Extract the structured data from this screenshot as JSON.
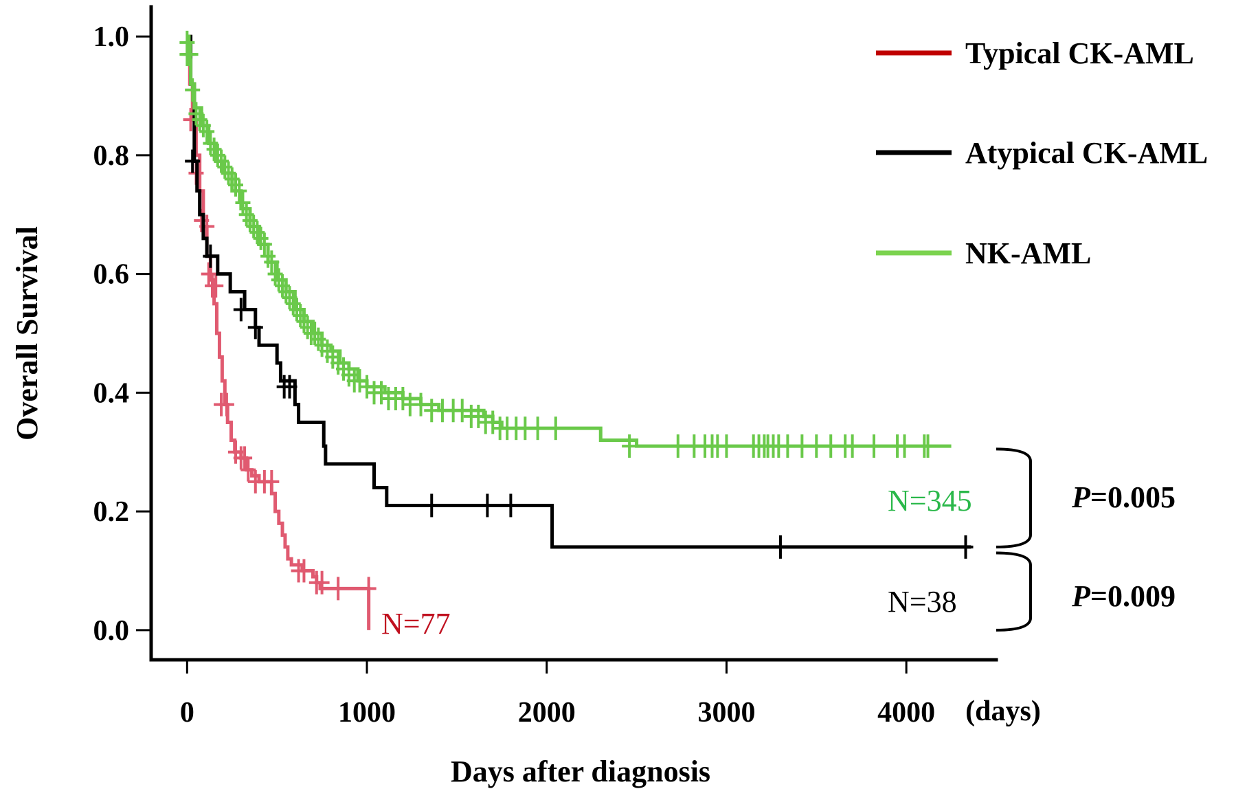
{
  "chart_data": {
    "type": "line",
    "subtype": "kaplan-meier",
    "title": "",
    "xlabel": "Days after diagnosis",
    "xunit": "(days)",
    "ylabel": "Overall Survival",
    "xlim": [
      -200,
      4500
    ],
    "ylim": [
      -0.05,
      1.05
    ],
    "xticks": [
      "0",
      "1000",
      "2000",
      "3000",
      "4000"
    ],
    "yticks": [
      "0.0",
      "0.2",
      "0.4",
      "0.6",
      "0.8",
      "1.0"
    ],
    "grid": false,
    "legend_position": "top-right",
    "series": [
      {
        "name": "Typical CK-AML",
        "color": "#e05a70",
        "legend_color": "#c00000",
        "n_label": "N=77",
        "n_label_color": "#c0101f",
        "steps": [
          [
            0,
            1.0
          ],
          [
            15,
            0.92
          ],
          [
            30,
            0.86
          ],
          [
            50,
            0.8
          ],
          [
            70,
            0.74
          ],
          [
            90,
            0.68
          ],
          [
            110,
            0.63
          ],
          [
            130,
            0.59
          ],
          [
            150,
            0.55
          ],
          [
            165,
            0.5
          ],
          [
            180,
            0.46
          ],
          [
            195,
            0.42
          ],
          [
            210,
            0.38
          ],
          [
            225,
            0.35
          ],
          [
            245,
            0.32
          ],
          [
            265,
            0.3
          ],
          [
            300,
            0.29
          ],
          [
            330,
            0.27
          ],
          [
            360,
            0.26
          ],
          [
            400,
            0.25
          ],
          [
            470,
            0.23
          ],
          [
            490,
            0.2
          ],
          [
            510,
            0.18
          ],
          [
            530,
            0.16
          ],
          [
            545,
            0.14
          ],
          [
            560,
            0.12
          ],
          [
            580,
            0.11
          ],
          [
            640,
            0.1
          ],
          [
            700,
            0.09
          ],
          [
            720,
            0.08
          ],
          [
            740,
            0.07
          ],
          [
            1010,
            0.0
          ]
        ],
        "censors": [
          [
            20,
            0.86
          ],
          [
            50,
            0.77
          ],
          [
            80,
            0.69
          ],
          [
            110,
            0.68
          ],
          [
            120,
            0.6
          ],
          [
            140,
            0.58
          ],
          [
            160,
            0.58
          ],
          [
            190,
            0.38
          ],
          [
            220,
            0.38
          ],
          [
            270,
            0.3
          ],
          [
            300,
            0.29
          ],
          [
            320,
            0.29
          ],
          [
            340,
            0.27
          ],
          [
            380,
            0.25
          ],
          [
            430,
            0.25
          ],
          [
            470,
            0.25
          ],
          [
            620,
            0.1
          ],
          [
            650,
            0.1
          ],
          [
            720,
            0.08
          ],
          [
            750,
            0.08
          ],
          [
            840,
            0.07
          ],
          [
            1010,
            0.07
          ]
        ]
      },
      {
        "name": "Atypical CK-AML",
        "color": "#000000",
        "legend_color": "#000000",
        "n_label": "N=38",
        "n_label_color": "#000000",
        "steps": [
          [
            0,
            1.0
          ],
          [
            20,
            0.92
          ],
          [
            40,
            0.79
          ],
          [
            55,
            0.74
          ],
          [
            70,
            0.7
          ],
          [
            90,
            0.66
          ],
          [
            110,
            0.63
          ],
          [
            170,
            0.6
          ],
          [
            240,
            0.57
          ],
          [
            320,
            0.54
          ],
          [
            380,
            0.51
          ],
          [
            400,
            0.48
          ],
          [
            500,
            0.45
          ],
          [
            520,
            0.42
          ],
          [
            600,
            0.38
          ],
          [
            620,
            0.35
          ],
          [
            760,
            0.31
          ],
          [
            770,
            0.28
          ],
          [
            1040,
            0.24
          ],
          [
            1110,
            0.21
          ],
          [
            2030,
            0.14
          ],
          [
            4360,
            0.14
          ]
        ],
        "censors": [
          [
            30,
            0.79
          ],
          [
            130,
            0.63
          ],
          [
            300,
            0.54
          ],
          [
            380,
            0.51
          ],
          [
            540,
            0.41
          ],
          [
            570,
            0.41
          ],
          [
            1360,
            0.21
          ],
          [
            1670,
            0.21
          ],
          [
            1800,
            0.21
          ],
          [
            3300,
            0.14
          ],
          [
            4330,
            0.14
          ]
        ]
      },
      {
        "name": "NK-AML",
        "color": "#6ac94a",
        "legend_color": "#7bd34f",
        "n_label": "N=345",
        "n_label_color": "#2ab84a",
        "steps": [
          [
            0,
            1.0
          ],
          [
            10,
            0.96
          ],
          [
            20,
            0.92
          ],
          [
            40,
            0.88
          ],
          [
            80,
            0.85
          ],
          [
            120,
            0.82
          ],
          [
            160,
            0.79
          ],
          [
            200,
            0.77
          ],
          [
            250,
            0.74
          ],
          [
            300,
            0.71
          ],
          [
            350,
            0.68
          ],
          [
            400,
            0.65
          ],
          [
            450,
            0.62
          ],
          [
            500,
            0.59
          ],
          [
            550,
            0.57
          ],
          [
            600,
            0.54
          ],
          [
            650,
            0.52
          ],
          [
            700,
            0.5
          ],
          [
            750,
            0.48
          ],
          [
            800,
            0.47
          ],
          [
            850,
            0.45
          ],
          [
            900,
            0.44
          ],
          [
            950,
            0.42
          ],
          [
            1000,
            0.41
          ],
          [
            1100,
            0.4
          ],
          [
            1200,
            0.39
          ],
          [
            1300,
            0.38
          ],
          [
            1400,
            0.37
          ],
          [
            1550,
            0.37
          ],
          [
            1650,
            0.36
          ],
          [
            1700,
            0.35
          ],
          [
            1750,
            0.34
          ],
          [
            2100,
            0.34
          ],
          [
            2300,
            0.32
          ],
          [
            2500,
            0.31
          ],
          [
            4250,
            0.31
          ]
        ],
        "censors": [
          [
            0,
            0.99
          ],
          [
            0,
            0.97
          ],
          [
            10,
            0.97
          ],
          [
            20,
            0.97
          ],
          [
            30,
            0.91
          ],
          [
            50,
            0.87
          ],
          [
            70,
            0.86
          ],
          [
            90,
            0.85
          ],
          [
            110,
            0.84
          ],
          [
            130,
            0.82
          ],
          [
            150,
            0.81
          ],
          [
            170,
            0.8
          ],
          [
            190,
            0.79
          ],
          [
            210,
            0.78
          ],
          [
            230,
            0.77
          ],
          [
            250,
            0.76
          ],
          [
            270,
            0.75
          ],
          [
            290,
            0.74
          ],
          [
            310,
            0.72
          ],
          [
            330,
            0.7
          ],
          [
            350,
            0.69
          ],
          [
            370,
            0.68
          ],
          [
            390,
            0.67
          ],
          [
            410,
            0.66
          ],
          [
            430,
            0.65
          ],
          [
            450,
            0.63
          ],
          [
            470,
            0.62
          ],
          [
            490,
            0.6
          ],
          [
            510,
            0.59
          ],
          [
            530,
            0.58
          ],
          [
            550,
            0.57
          ],
          [
            570,
            0.56
          ],
          [
            590,
            0.55
          ],
          [
            610,
            0.54
          ],
          [
            630,
            0.53
          ],
          [
            650,
            0.52
          ],
          [
            670,
            0.51
          ],
          [
            690,
            0.5
          ],
          [
            710,
            0.5
          ],
          [
            730,
            0.49
          ],
          [
            750,
            0.48
          ],
          [
            780,
            0.47
          ],
          [
            810,
            0.46
          ],
          [
            840,
            0.45
          ],
          [
            870,
            0.44
          ],
          [
            900,
            0.43
          ],
          [
            930,
            0.42
          ],
          [
            960,
            0.42
          ],
          [
            1000,
            0.41
          ],
          [
            1040,
            0.4
          ],
          [
            1080,
            0.4
          ],
          [
            1120,
            0.39
          ],
          [
            1160,
            0.39
          ],
          [
            1200,
            0.39
          ],
          [
            1240,
            0.38
          ],
          [
            1300,
            0.38
          ],
          [
            1360,
            0.37
          ],
          [
            1420,
            0.37
          ],
          [
            1480,
            0.37
          ],
          [
            1530,
            0.37
          ],
          [
            1580,
            0.36
          ],
          [
            1620,
            0.36
          ],
          [
            1660,
            0.35
          ],
          [
            1700,
            0.35
          ],
          [
            1740,
            0.34
          ],
          [
            1780,
            0.34
          ],
          [
            1830,
            0.34
          ],
          [
            1880,
            0.34
          ],
          [
            1950,
            0.34
          ],
          [
            2050,
            0.34
          ],
          [
            2460,
            0.31
          ],
          [
            2730,
            0.31
          ],
          [
            2820,
            0.31
          ],
          [
            2880,
            0.31
          ],
          [
            2920,
            0.31
          ],
          [
            2950,
            0.31
          ],
          [
            3000,
            0.31
          ],
          [
            3150,
            0.31
          ],
          [
            3180,
            0.31
          ],
          [
            3210,
            0.31
          ],
          [
            3230,
            0.31
          ],
          [
            3260,
            0.31
          ],
          [
            3290,
            0.31
          ],
          [
            3340,
            0.31
          ],
          [
            3420,
            0.31
          ],
          [
            3500,
            0.31
          ],
          [
            3580,
            0.31
          ],
          [
            3660,
            0.31
          ],
          [
            3700,
            0.31
          ],
          [
            3820,
            0.31
          ],
          [
            3950,
            0.31
          ],
          [
            3990,
            0.31
          ],
          [
            4100,
            0.31
          ],
          [
            4120,
            0.31
          ]
        ]
      }
    ],
    "p_values": [
      {
        "prefix": "P",
        "value": "=0.005"
      },
      {
        "prefix": "P",
        "value": "=0.009"
      }
    ]
  }
}
